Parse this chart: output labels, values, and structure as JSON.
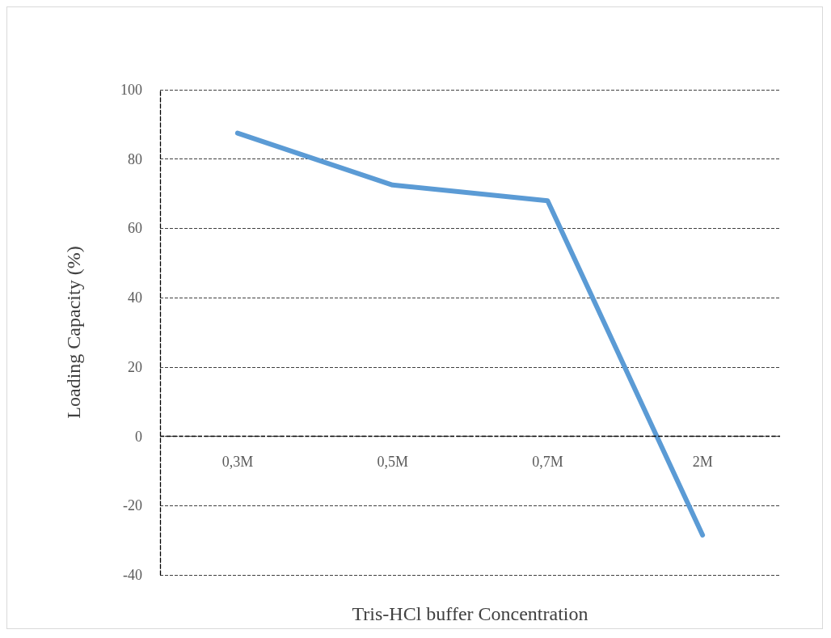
{
  "chart_data": {
    "type": "line",
    "xlabel": "Tris-HCl buffer Concentration",
    "ylabel": "Loading Capacity (%)",
    "categories": [
      "0,3M",
      "0,5M",
      "0,7M",
      "2M"
    ],
    "series": [
      {
        "color": "#5b9bd5",
        "values": [
          87.5,
          72.5,
          68,
          -28.5
        ]
      }
    ],
    "ylim": [
      -40,
      100
    ],
    "yticks": [
      -40,
      -20,
      0,
      20,
      40,
      60,
      80,
      100
    ],
    "grid": "y",
    "marker": "none",
    "line_style": "solid",
    "ref_lines": [
      {
        "axis": "y",
        "value": 0,
        "color": "#000000",
        "line_style": "dashed"
      }
    ]
  }
}
